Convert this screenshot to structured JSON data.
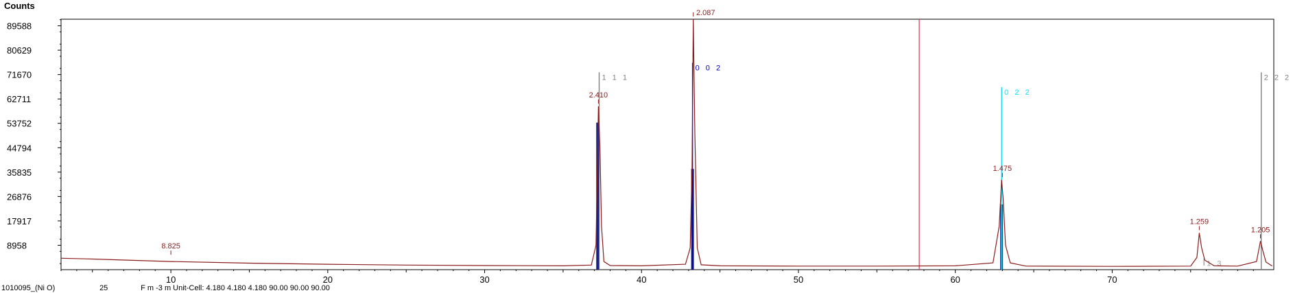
{
  "chart_data": {
    "type": "line",
    "title": "Counts",
    "xlabel": "",
    "ylabel": "Counts",
    "xlim": [
      3,
      80.3
    ],
    "ylim": [
      0,
      92000
    ],
    "yticks": [
      "89588",
      "80629",
      "71670",
      "62711",
      "53752",
      "44794",
      "35835",
      "26876",
      "17917",
      "8958"
    ],
    "ytick_values": [
      89588,
      80629,
      71670,
      62711,
      53752,
      44794,
      35835,
      26876,
      17917,
      8958
    ],
    "xticks": [
      "10",
      "20",
      "30",
      "40",
      "50",
      "60",
      "70"
    ],
    "xtick_values": [
      10,
      20,
      30,
      40,
      50,
      60,
      70
    ],
    "series": [
      {
        "color": "#8b1a1a",
        "x": [
          3,
          5,
          10,
          15,
          20,
          25,
          30,
          35,
          36.8,
          37.1,
          37.25,
          37.35,
          37.45,
          37.6,
          38,
          40,
          42.8,
          43.1,
          43.22,
          43.3,
          43.4,
          43.55,
          43.8,
          45,
          50,
          55,
          60,
          62.4,
          62.8,
          62.95,
          63.05,
          63.2,
          63.5,
          64.5,
          70,
          75,
          75.4,
          75.55,
          75.7,
          75.9,
          76.5,
          78,
          79.2,
          79.45,
          79.6,
          79.8,
          80.2
        ],
        "y": [
          4200,
          3900,
          3000,
          2400,
          2000,
          1700,
          1500,
          1400,
          1700,
          9000,
          60000,
          44000,
          16000,
          3000,
          1500,
          1400,
          2000,
          8000,
          37000,
          92000,
          50000,
          8000,
          1800,
          1400,
          1300,
          1300,
          1400,
          2500,
          16000,
          33000,
          26000,
          9000,
          2500,
          1300,
          1200,
          1300,
          4500,
          13500,
          8000,
          3500,
          1400,
          1300,
          3000,
          10500,
          7000,
          2800,
          1300
        ]
      }
    ],
    "peak_labels": [
      {
        "x": 10.0,
        "y": 4500,
        "text": "8.825"
      },
      {
        "x": 37.25,
        "y": 60000,
        "text": "2.410"
      },
      {
        "x": 43.3,
        "y": 92000,
        "text": "2.087"
      },
      {
        "x": 63.0,
        "y": 33000,
        "text": "1.475"
      },
      {
        "x": 75.55,
        "y": 13500,
        "text": "1.259"
      },
      {
        "x": 79.45,
        "y": 10500,
        "text": "1.205"
      }
    ],
    "reference_lines": [
      {
        "x": 37.3,
        "top": 72500,
        "bottom": 0,
        "color": "#808080",
        "label": "1 1 1",
        "fill_top": 0,
        "fill_color": ""
      },
      {
        "x": 37.2,
        "top": 54000,
        "bottom": 0,
        "color": "#1a237e",
        "label": "",
        "fill_top": 54000,
        "fill_color": "#1a237e"
      },
      {
        "x": 43.25,
        "top": 76000,
        "bottom": 0,
        "color": "#0000cc",
        "label": "0 0 2",
        "fill_top": 37000,
        "fill_color": "#1a237e"
      },
      {
        "x": 62.95,
        "top": 67000,
        "bottom": 0,
        "color": "#00e5ff",
        "label": "0 2 2",
        "fill_top": 24000,
        "fill_color": "#1a237e"
      },
      {
        "x": 75.85,
        "top": 4200,
        "bottom": 1500,
        "color": "#a0a0a0",
        "label": "1 3",
        "fill_top": 0,
        "fill_color": ""
      },
      {
        "x": 79.5,
        "top": 72500,
        "bottom": 0,
        "color": "#808080",
        "label": "2 2 2",
        "fill_top": 0,
        "fill_color": ""
      }
    ],
    "marker_line": {
      "x": 57.7,
      "color": "#e03050"
    },
    "grid": false,
    "legend": "none"
  },
  "footer": {
    "ref_code": "1010095_(Ni O)",
    "score": "25",
    "cell_info": "F m -3 m Unit-Cell: 4.180 4.180 4.180 90.00 90.00 90.00"
  }
}
